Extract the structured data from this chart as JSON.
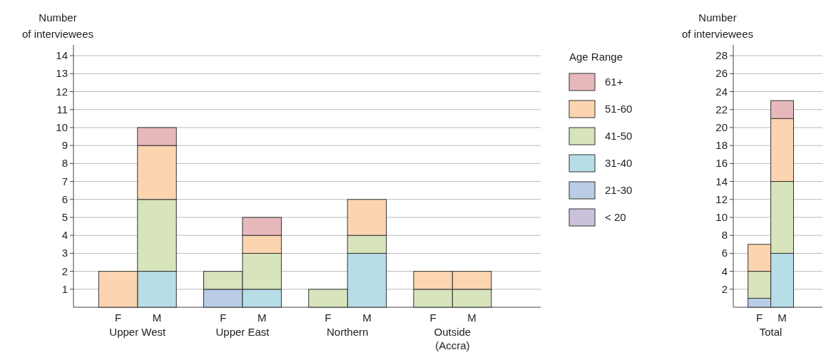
{
  "chart_data": [
    {
      "type": "bar",
      "stacked": true,
      "ylabel": "Number of interviewees",
      "legend_title": "Age Range",
      "legend": "right",
      "grid": "y",
      "categories": [
        "F",
        "M",
        "F",
        "M",
        "F",
        "M",
        "F",
        "M"
      ],
      "annotations": [
        "Upper West",
        "Upper East",
        "Northern",
        "Outside (Accra)"
      ],
      "ylim": [
        0,
        14.6
      ],
      "yticks": [
        1,
        2,
        3,
        4,
        5,
        6,
        7,
        8,
        9,
        10,
        11,
        12,
        13,
        14
      ],
      "series": [
        {
          "name": "< 20",
          "color": "#ccc1da",
          "values": [
            0,
            0,
            0,
            0,
            0,
            0,
            0,
            0
          ]
        },
        {
          "name": "21-30",
          "color": "#b9cde5",
          "values": [
            0,
            0,
            1,
            0,
            0,
            0,
            0,
            0
          ]
        },
        {
          "name": "31-40",
          "color": "#b7dde8",
          "values": [
            0,
            2,
            0,
            1,
            0,
            3,
            0,
            0
          ]
        },
        {
          "name": "41-50",
          "color": "#d7e4bc",
          "values": [
            0,
            4,
            1,
            2,
            1,
            1,
            1,
            1
          ]
        },
        {
          "name": "51-60",
          "color": "#fcd5b0",
          "values": [
            2,
            3,
            0,
            1,
            0,
            2,
            1,
            1
          ]
        },
        {
          "name": "61+",
          "color": "#e6b8bc",
          "values": [
            0,
            1,
            0,
            1,
            0,
            0,
            0,
            0
          ]
        }
      ]
    },
    {
      "type": "bar",
      "stacked": true,
      "ylabel": "Number of interviewees",
      "grid": "y",
      "categories": [
        "F",
        "M"
      ],
      "annotations": [
        "Total"
      ],
      "ylim": [
        0,
        29.2
      ],
      "yticks": [
        2,
        4,
        6,
        8,
        10,
        12,
        14,
        16,
        18,
        20,
        22,
        24,
        26,
        28
      ],
      "series": [
        {
          "color": "#b9cde5",
          "values": [
            1,
            0
          ]
        },
        {
          "color": "#b7dde8",
          "values": [
            0,
            6
          ]
        },
        {
          "color": "#d7e4bc",
          "values": [
            3,
            8
          ]
        },
        {
          "color": "#fcd5b0",
          "values": [
            3,
            7
          ]
        },
        {
          "color": "#e6b8bc",
          "values": [
            0,
            2
          ]
        }
      ]
    }
  ]
}
